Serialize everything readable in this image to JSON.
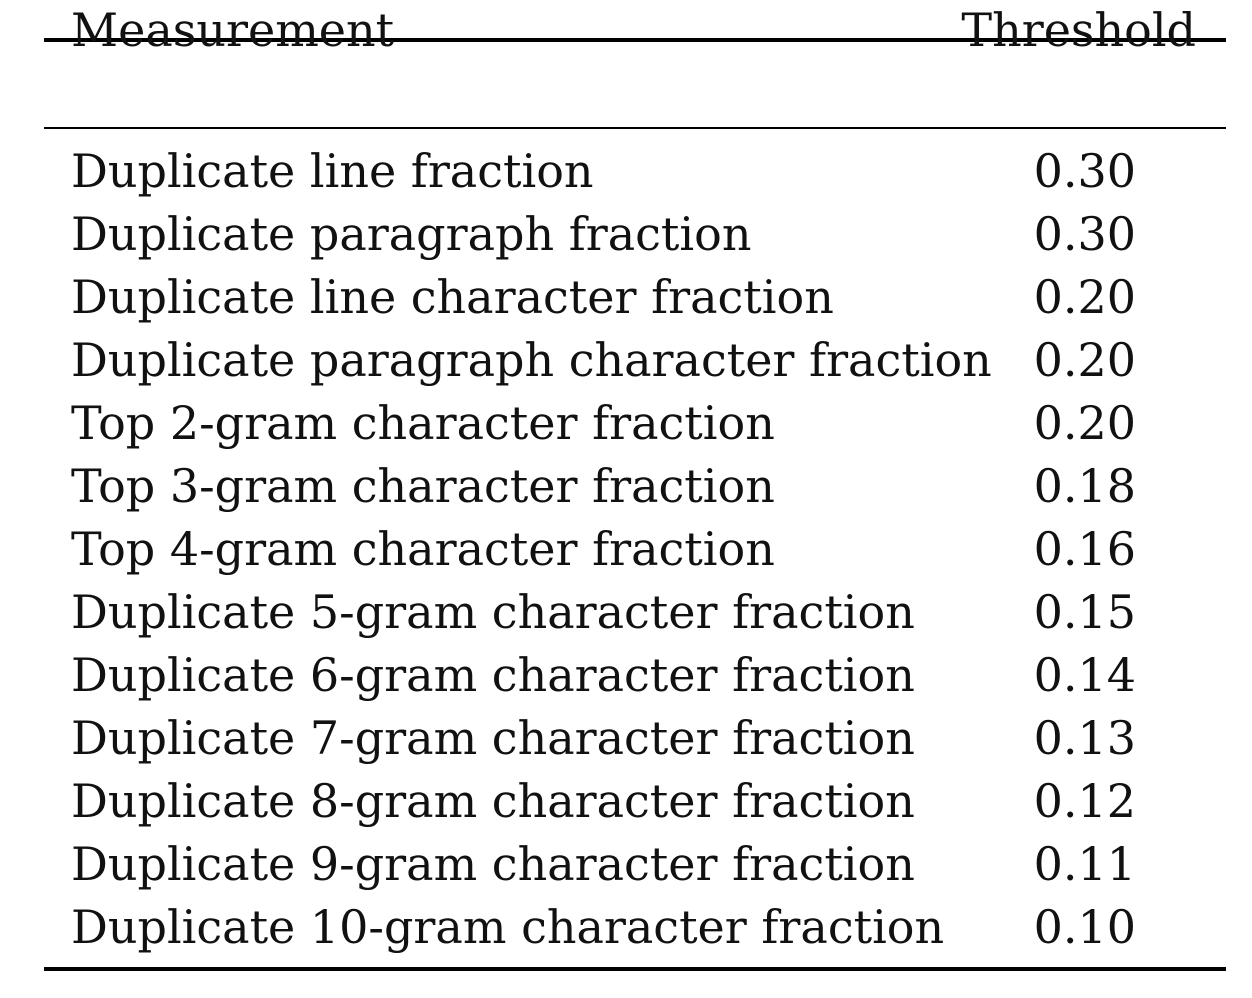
{
  "table": {
    "headers": {
      "measurement": "Measurement",
      "threshold": "Threshold"
    },
    "rows": [
      {
        "measurement": "Duplicate line fraction",
        "threshold": "0.30"
      },
      {
        "measurement": "Duplicate paragraph fraction",
        "threshold": "0.30"
      },
      {
        "measurement": "Duplicate line character fraction",
        "threshold": "0.20"
      },
      {
        "measurement": "Duplicate paragraph character fraction",
        "threshold": "0.20"
      },
      {
        "measurement": "Top 2-gram character fraction",
        "threshold": "0.20"
      },
      {
        "measurement": "Top 3-gram character fraction",
        "threshold": "0.18"
      },
      {
        "measurement": "Top 4-gram character fraction",
        "threshold": "0.16"
      },
      {
        "measurement": "Duplicate 5-gram character fraction",
        "threshold": "0.15"
      },
      {
        "measurement": "Duplicate 6-gram character fraction",
        "threshold": "0.14"
      },
      {
        "measurement": "Duplicate 7-gram character fraction",
        "threshold": "0.13"
      },
      {
        "measurement": "Duplicate 8-gram character fraction",
        "threshold": "0.12"
      },
      {
        "measurement": "Duplicate 9-gram character fraction",
        "threshold": "0.11"
      },
      {
        "measurement": "Duplicate 10-gram character fraction",
        "threshold": "0.10"
      }
    ]
  }
}
